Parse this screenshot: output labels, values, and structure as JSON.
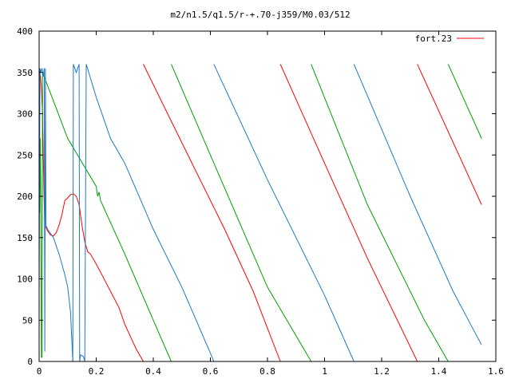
{
  "chart_data": {
    "type": "line",
    "title": "m2/n1.5/q1.5/r-+.70-j359/M0.03/512",
    "xlabel": "",
    "ylabel": "",
    "xlim": [
      0,
      1.6
    ],
    "ylim": [
      0,
      400
    ],
    "x_ticks": [
      "0",
      "0.2",
      "0.4",
      "0.6",
      "0.8",
      "1",
      "1.2",
      "1.4",
      "1.6"
    ],
    "y_ticks": [
      "0",
      "50",
      "100",
      "150",
      "200",
      "250",
      "300",
      "350",
      "400"
    ],
    "grid": false,
    "legend": {
      "position": "top-right",
      "entries": [
        {
          "label": "fort.23",
          "color": "#ff0000"
        }
      ]
    },
    "series": [
      {
        "color": "#ff0000",
        "segments": [
          [
            [
              0.0,
              355
            ],
            [
              0.002,
              350
            ],
            [
              0.005,
              345
            ],
            [
              0.008,
              330
            ],
            [
              0.012,
              300
            ],
            [
              0.015,
              240
            ],
            [
              0.018,
              190
            ],
            [
              0.02,
              165
            ],
            [
              0.03,
              158
            ],
            [
              0.04,
              153
            ],
            [
              0.05,
              152
            ],
            [
              0.06,
              156
            ],
            [
              0.07,
              165
            ],
            [
              0.08,
              178
            ],
            [
              0.09,
              195
            ],
            [
              0.1,
              198
            ],
            [
              0.11,
              202
            ],
            [
              0.12,
              203
            ],
            [
              0.13,
              200
            ],
            [
              0.14,
              190
            ],
            [
              0.15,
              165
            ],
            [
              0.16,
              145
            ],
            [
              0.17,
              133
            ],
            [
              0.18,
              130
            ],
            [
              0.2,
              118
            ],
            [
              0.22,
              105
            ],
            [
              0.25,
              85
            ],
            [
              0.28,
              65
            ],
            [
              0.3,
              45
            ],
            [
              0.32,
              30
            ],
            [
              0.34,
              15
            ],
            [
              0.365,
              0
            ]
          ],
          [
            [
              0.365,
              360
            ],
            [
              0.45,
              300
            ],
            [
              0.55,
              230
            ],
            [
              0.65,
              160
            ],
            [
              0.75,
              85
            ],
            [
              0.845,
              0
            ]
          ],
          [
            [
              0.845,
              360
            ],
            [
              1.0,
              240
            ],
            [
              1.15,
              125
            ],
            [
              1.325,
              0
            ]
          ],
          [
            [
              1.325,
              360
            ],
            [
              1.55,
              190
            ]
          ]
        ]
      },
      {
        "color": "#00a000",
        "segments": [
          [
            [
              0.0,
              270
            ],
            [
              0.002,
              180
            ],
            [
              0.004,
              270
            ],
            [
              0.006,
              200
            ],
            [
              0.008,
              5
            ],
            [
              0.01,
              5
            ],
            [
              0.012,
              350
            ]
          ],
          [
            [
              0.012,
              350
            ],
            [
              0.1,
              270
            ],
            [
              0.2,
              212
            ],
            [
              0.205,
              200
            ],
            [
              0.21,
              205
            ],
            [
              0.215,
              195
            ],
            [
              0.3,
              130
            ],
            [
              0.4,
              50
            ],
            [
              0.463,
              0
            ]
          ],
          [
            [
              0.463,
              360
            ],
            [
              0.6,
              250
            ],
            [
              0.8,
              90
            ],
            [
              0.953,
              0
            ]
          ],
          [
            [
              0.953,
              360
            ],
            [
              1.15,
              190
            ],
            [
              1.35,
              50
            ],
            [
              1.433,
              0
            ]
          ],
          [
            [
              1.433,
              360
            ],
            [
              1.55,
              270
            ]
          ]
        ]
      },
      {
        "color": "#1f78c8",
        "segments": [
          [
            [
              0.0,
              90
            ],
            [
              0.003,
              355
            ],
            [
              0.006,
              350
            ],
            [
              0.01,
              355
            ],
            [
              0.015,
              345
            ],
            [
              0.018,
              355
            ],
            [
              0.02,
              12
            ],
            [
              0.022,
              355
            ],
            [
              0.024,
              165
            ],
            [
              0.03,
              160
            ],
            [
              0.05,
              150
            ],
            [
              0.07,
              130
            ],
            [
              0.09,
              105
            ],
            [
              0.1,
              90
            ],
            [
              0.11,
              60
            ],
            [
              0.118,
              0
            ]
          ],
          [
            [
              0.118,
              0
            ],
            [
              0.12,
              360
            ],
            [
              0.13,
              350
            ],
            [
              0.14,
              360
            ],
            [
              0.142,
              0
            ]
          ],
          [
            [
              0.142,
              0
            ],
            [
              0.145,
              8
            ],
            [
              0.155,
              6
            ],
            [
              0.16,
              0
            ],
            [
              0.165,
              360
            ],
            [
              0.2,
              320
            ],
            [
              0.25,
              270
            ],
            [
              0.3,
              240
            ],
            [
              0.4,
              160
            ],
            [
              0.5,
              90
            ],
            [
              0.6,
              10
            ],
            [
              0.612,
              0
            ]
          ],
          [
            [
              0.612,
              360
            ],
            [
              0.8,
              220
            ],
            [
              1.0,
              80
            ],
            [
              1.103,
              0
            ]
          ],
          [
            [
              1.103,
              360
            ],
            [
              1.3,
              200
            ],
            [
              1.45,
              85
            ],
            [
              1.55,
              20
            ]
          ]
        ]
      }
    ]
  }
}
